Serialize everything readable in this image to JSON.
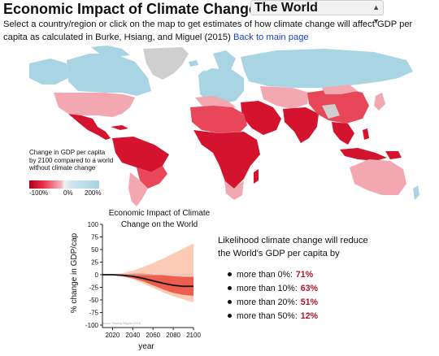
{
  "header": {
    "title": "Economic Impact of Climate Change on",
    "region_select": "The World"
  },
  "description": {
    "text": "Select a country/region or click on the map to get estimates of how climate change will affect GDP per capita as calculated in Burke, Hsiang, and Miguel (2015)",
    "link": "Back to main page"
  },
  "legend": {
    "title_line1": "Change in GDP per capita",
    "title_line2": "by 2100 compared to a world",
    "title_line3": "without climate change",
    "min": "-100%",
    "mid": "0%",
    "max": "200%"
  },
  "colors": {
    "strong_loss": "#d4142e",
    "loss": "#e8475a",
    "mild_loss": "#f3a7b1",
    "gain": "#a8d4e4",
    "no_data": "#cfcfcf",
    "link": "#1a3fd4",
    "highlight": "#b3122a"
  },
  "chart": {
    "title_line1": "Economic Impact of Climate",
    "title_line2": "Change on the World",
    "ylabel": "% change in GDP/cap",
    "xlabel": "year",
    "watermark": "Burke Hsiang Miguel 2015"
  },
  "chart_data": {
    "type": "area",
    "title": "Economic Impact of Climate Change on the World",
    "xlabel": "year",
    "ylabel": "% change in GDP/cap",
    "xlim": [
      2010,
      2100
    ],
    "ylim": [
      -100,
      100
    ],
    "x_ticks": [
      2020,
      2040,
      2060,
      2080,
      2100
    ],
    "y_ticks": [
      100,
      75,
      50,
      25,
      0,
      -25,
      -50,
      -75,
      -100
    ],
    "x": [
      2010,
      2020,
      2030,
      2040,
      2050,
      2060,
      2070,
      2080,
      2090,
      2100
    ],
    "series": [
      {
        "values": [
          0,
          0,
          -1,
          -3,
          -7,
          -12,
          -17,
          -21,
          -23,
          -23
        ]
      }
    ],
    "band_outer_upper": [
      0,
      1,
      3,
      8,
      15,
      23,
      32,
      42,
      52,
      62
    ],
    "band_outer_lower": [
      0,
      -1,
      -4,
      -9,
      -17,
      -26,
      -35,
      -43,
      -49,
      -55
    ],
    "band_inner_upper": [
      0,
      0,
      1,
      2,
      2,
      1,
      -1,
      -3,
      -4,
      -4
    ],
    "band_inner_lower": [
      0,
      -1,
      -3,
      -7,
      -13,
      -21,
      -29,
      -36,
      -40,
      -42
    ]
  },
  "probabilities": {
    "intro_line1": "Likelihood climate change will reduce",
    "intro_line2": "the World's GDP per capita by",
    "items": [
      {
        "label": "more than 0%:",
        "value": "71%"
      },
      {
        "label": "more than 10%:",
        "value": "63%"
      },
      {
        "label": "more than 20%:",
        "value": "51%"
      },
      {
        "label": "more than 50%:",
        "value": "12%"
      }
    ]
  }
}
